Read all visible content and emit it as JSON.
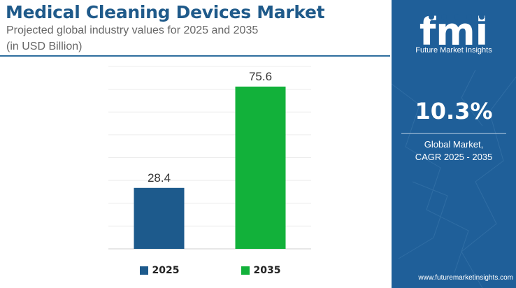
{
  "header": {
    "title": "Medical Cleaning Devices Market",
    "subtitle": "Projected global industry values for 2025 and 2035",
    "units": "(in USD Billion)"
  },
  "chart_data": {
    "type": "bar",
    "categories": [
      "2025",
      "2035"
    ],
    "values": [
      28.4,
      75.6
    ],
    "value_labels": [
      "28.4",
      "75.6"
    ],
    "bar_colors": [
      "#1d5a8c",
      "#12b13a"
    ],
    "ylim": [
      0,
      85
    ],
    "grid": true,
    "legend": {
      "placement": "bottom",
      "entries": [
        {
          "label": "2025",
          "color": "#1d5a8c"
        },
        {
          "label": "2035",
          "color": "#12b13a"
        }
      ]
    }
  },
  "sidebar": {
    "logo_text": "fmi",
    "logo_subtitle": "Future Market Insights",
    "cagr_value": "10.3%",
    "cagr_label_line1": "Global Market,",
    "cagr_label_line2": "CAGR 2025 - 2035",
    "website": "www.futuremarketinsights.com",
    "background_color": "#1f5f99"
  }
}
